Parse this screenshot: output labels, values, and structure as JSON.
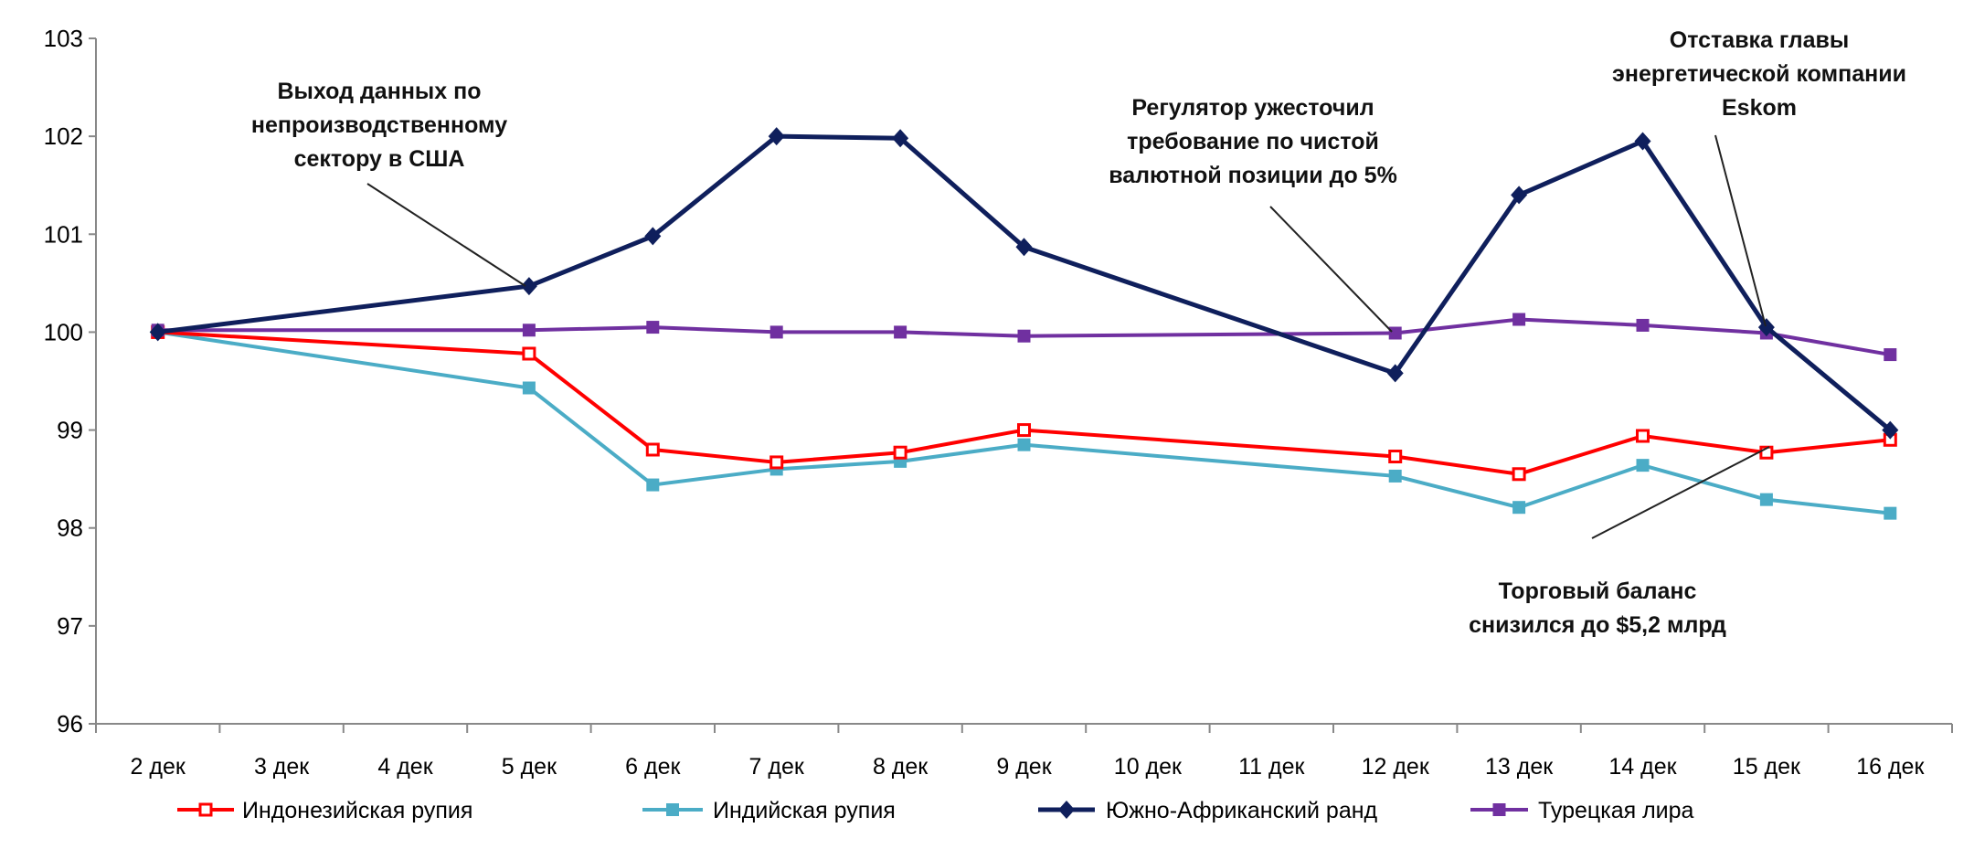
{
  "chart_data": {
    "type": "line",
    "categories": [
      "2 дек",
      "3 дек",
      "4 дек",
      "5 дек",
      "6 дек",
      "7 дек",
      "8 дек",
      "9 дек",
      "10 дек",
      "11 дек",
      "12 дек",
      "13 дек",
      "14 дек",
      "15 дек",
      "16 дек"
    ],
    "ylim": [
      96,
      103
    ],
    "yticks": [
      "96",
      "97",
      "98",
      "99",
      "100",
      "101",
      "102",
      "103"
    ],
    "grid": false,
    "legend_position": "bottom",
    "series": [
      {
        "name": "Индонезийская рупия",
        "color": "#ff0000",
        "marker": "square-open",
        "values": [
          100,
          null,
          null,
          99.78,
          98.8,
          98.67,
          98.77,
          99.0,
          null,
          null,
          98.73,
          98.55,
          98.94,
          98.77,
          98.9
        ]
      },
      {
        "name": "Индийская рупия",
        "color": "#4bacc6",
        "marker": "square",
        "values": [
          100,
          null,
          null,
          99.43,
          98.44,
          98.6,
          98.68,
          98.85,
          null,
          null,
          98.53,
          98.21,
          98.64,
          98.29,
          98.15
        ]
      },
      {
        "name": "Южно-Африканский ранд",
        "color": "#0f1f5c",
        "marker": "diamond",
        "values": [
          100,
          null,
          null,
          100.47,
          100.98,
          102.0,
          101.98,
          100.87,
          null,
          null,
          99.58,
          101.4,
          101.95,
          100.05,
          99.0
        ]
      },
      {
        "name": "Турецкая лира",
        "color": "#7030a0",
        "marker": "square",
        "values": [
          100.02,
          null,
          null,
          100.02,
          100.05,
          100.0,
          100.0,
          99.96,
          null,
          null,
          99.99,
          100.13,
          100.07,
          99.99,
          99.77
        ]
      }
    ],
    "annotations": [
      {
        "lines": [
          "Выход данных по",
          "непроизводственному",
          "сектору в США"
        ],
        "target": "5 дек"
      },
      {
        "lines": [
          "Регулятор ужесточил",
          "требование по чистой",
          "валютной позиции до 5%"
        ],
        "target": "12 дек"
      },
      {
        "lines": [
          "Отставка главы",
          "энергетической компании",
          "Eskom"
        ],
        "target": "15 дек"
      },
      {
        "lines": [
          "Торговый баланс",
          "снизился до $5,2 млрд"
        ],
        "target": "15 дек"
      }
    ]
  }
}
